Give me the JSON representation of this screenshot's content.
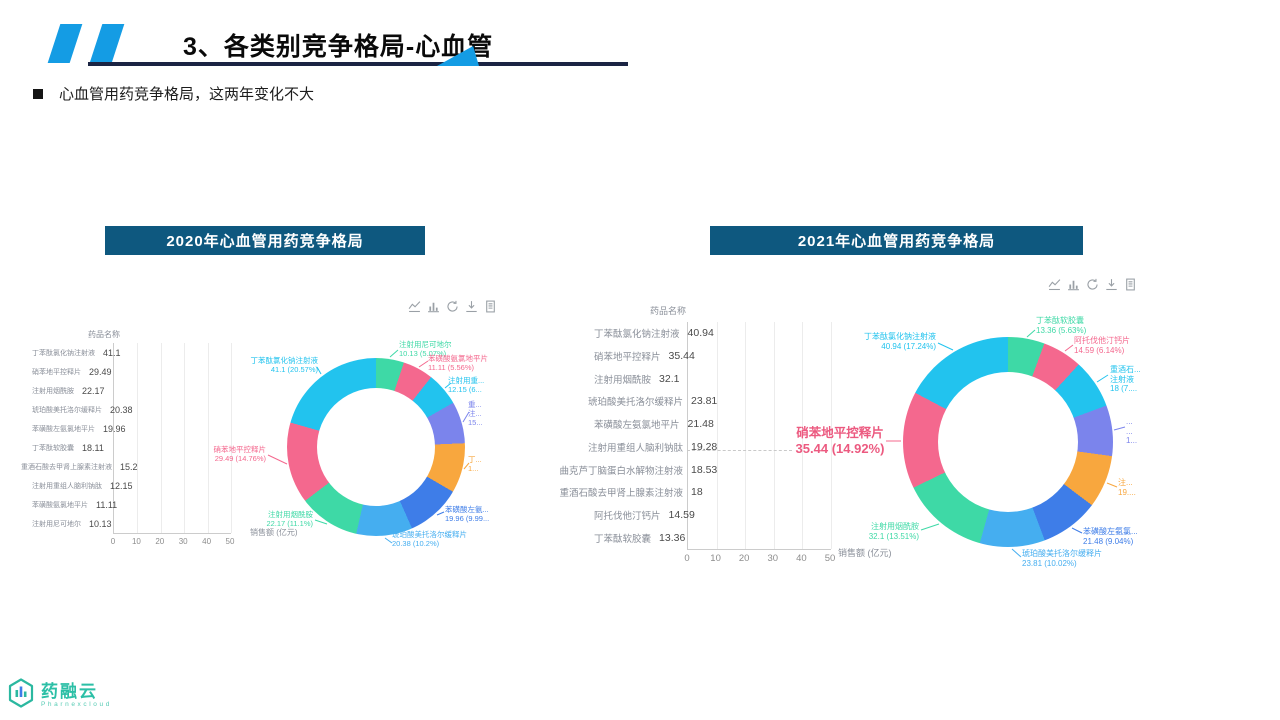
{
  "header": {
    "title": "3、各类别竞争格局-心血管",
    "bullet": "心血管用药竞争格局，这两年变化不大"
  },
  "panels": [
    {
      "banner": "2020年心血管用药竞争格局",
      "axis_y_label": "药品名称",
      "axis_x_label": "销售额 (亿元)"
    },
    {
      "banner": "2021年心血管用药竞争格局",
      "axis_y_label": "药品名称",
      "axis_x_label": "销售额 (亿元)"
    }
  ],
  "toolbar_icons": [
    "line-chart",
    "bar-chart",
    "restore",
    "download",
    "data-view"
  ],
  "highlight": {
    "name": "硝苯地平控释片",
    "value": "35.44 (14.92%)"
  },
  "footer": {
    "brand": "药融云",
    "brand_en": "Pharnexcloud"
  },
  "colors": {
    "cyan": "#22C3EE",
    "pink": "#F4688E",
    "green": "#3ED9A6",
    "lightblue": "#45AEF0",
    "blue": "#3E7DE8",
    "orange": "#F8A73E",
    "purple": "#7B84EC",
    "bar": "#4D9EF6",
    "banner": "#0E587F",
    "accent": "#149CE4",
    "underline": "#1B2443",
    "highlight_pink": "#EC5A80",
    "brand_teal": "#2BBFA6"
  },
  "chart_data": [
    {
      "type": "bar",
      "title": "2020年心血管用药竞争格局",
      "xlabel": "销售额 (亿元)",
      "ylabel": "药品名称",
      "xlim": [
        0,
        50
      ],
      "xticks": [
        0,
        10,
        20,
        30,
        40,
        50
      ],
      "grid": true,
      "legend": "none",
      "categories": [
        "丁苯酞氯化钠注射液",
        "硝苯地平控释片",
        "注射用烟酰胺",
        "琥珀酸美托洛尔缓释片",
        "苯磺酸左氨氯地平片",
        "丁苯酞软胶囊",
        "重酒石酸去甲肾上腺素注射液",
        "注射用重组人脑利钠肽",
        "苯磺酸氨氯地平片",
        "注射用尼可地尔"
      ],
      "values": [
        41.1,
        29.49,
        22.17,
        20.38,
        19.96,
        18.11,
        15.2,
        12.15,
        11.11,
        10.13
      ]
    },
    {
      "type": "pie",
      "title": "2020年心血管用药竞争格局（占比）",
      "slices": [
        {
          "name": "注射用尼可地尔",
          "value": 10.13,
          "pct": 5.07,
          "color": "green"
        },
        {
          "name": "苯磺酸氨氯地平片",
          "value": 11.11,
          "pct": 5.56,
          "color": "pink"
        },
        {
          "name": "注射用重组人脑利钠肽",
          "value": 12.15,
          "pct": 6.08,
          "color": "cyan"
        },
        {
          "name": "重酒石酸去甲肾上腺素注射液",
          "value": 15.2,
          "pct": 7.61,
          "color": "purple"
        },
        {
          "name": "丁苯酞软胶囊",
          "value": 18.11,
          "pct": 9.06,
          "color": "orange"
        },
        {
          "name": "苯磺酸左氨氯地平片",
          "value": 19.96,
          "pct": 9.99,
          "color": "blue"
        },
        {
          "name": "琥珀酸美托洛尔缓释片",
          "value": 20.38,
          "pct": 10.2,
          "color": "lightblue"
        },
        {
          "name": "注射用烟酰胺",
          "value": 22.17,
          "pct": 11.1,
          "color": "green"
        },
        {
          "name": "硝苯地平控释片",
          "value": 29.49,
          "pct": 14.76,
          "color": "pink"
        },
        {
          "name": "丁苯酞氯化钠注射液",
          "value": 41.1,
          "pct": 20.57,
          "color": "cyan"
        }
      ],
      "labels": [
        {
          "lines": [
            "丁苯酞氯化钠注射液",
            "41.1 (20.57%)"
          ],
          "color": "cyan"
        },
        {
          "lines": [
            "注射用尼可地尔",
            "10.13 (5.07%)"
          ],
          "color": "green"
        },
        {
          "lines": [
            "苯磺酸氨氯地平片",
            "11.11 (5.56%)"
          ],
          "color": "pink"
        },
        {
          "lines": [
            "注射用重...",
            "12.15 (6..."
          ],
          "color": "cyan"
        },
        {
          "lines": [
            "重...",
            "注...",
            "15..."
          ],
          "color": "purple"
        },
        {
          "lines": [
            "丁...",
            "1..."
          ],
          "color": "orange"
        },
        {
          "lines": [
            "苯磺酸左氨...",
            "19.96 (9.99..."
          ],
          "color": "blue"
        },
        {
          "lines": [
            "琥珀酸美托洛尔缓释片",
            "20.38 (10.2%)"
          ],
          "color": "lightblue"
        },
        {
          "lines": [
            "注射用烟酰胺",
            "22.17 (11.1%)"
          ],
          "color": "green"
        },
        {
          "lines": [
            "硝苯地平控释片",
            "29.49 (14.76%)"
          ],
          "color": "pink"
        }
      ]
    },
    {
      "type": "bar",
      "title": "2021年心血管用药竞争格局",
      "xlabel": "销售额 (亿元)",
      "ylabel": "药品名称",
      "xlim": [
        0,
        50
      ],
      "xticks": [
        0,
        10,
        20,
        30,
        40,
        50
      ],
      "grid": true,
      "legend": "none",
      "categories": [
        "丁苯酞氯化钠注射液",
        "硝苯地平控释片",
        "注射用烟酰胺",
        "琥珀酸美托洛尔缓释片",
        "苯磺酸左氨氯地平片",
        "注射用重组人脑利钠肽",
        "曲克芦丁脑蛋白水解物注射液",
        "重酒石酸去甲肾上腺素注射液",
        "阿托伐他汀钙片",
        "丁苯酞软胶囊"
      ],
      "values": [
        40.94,
        35.44,
        32.1,
        23.81,
        21.48,
        19.28,
        18.53,
        18,
        14.59,
        13.36
      ]
    },
    {
      "type": "pie",
      "title": "2021年心血管用药竞争格局（占比）",
      "slices": [
        {
          "name": "丁苯酞软胶囊",
          "value": 13.36,
          "pct": 5.63,
          "color": "green"
        },
        {
          "name": "阿托伐他汀钙片",
          "value": 14.59,
          "pct": 6.14,
          "color": "pink"
        },
        {
          "name": "重酒石酸去甲肾上腺素注射液",
          "value": 18,
          "pct": 7.58,
          "color": "cyan"
        },
        {
          "name": "曲克芦丁脑蛋白水解物注射液",
          "value": 18.53,
          "pct": 7.8,
          "color": "purple"
        },
        {
          "name": "注射用重组人脑利钠肽",
          "value": 19.28,
          "pct": 8.12,
          "color": "orange"
        },
        {
          "name": "苯磺酸左氨氯地平片",
          "value": 21.48,
          "pct": 9.04,
          "color": "blue"
        },
        {
          "name": "琥珀酸美托洛尔缓释片",
          "value": 23.81,
          "pct": 10.02,
          "color": "lightblue"
        },
        {
          "name": "注射用烟酰胺",
          "value": 32.1,
          "pct": 13.51,
          "color": "green"
        },
        {
          "name": "硝苯地平控释片",
          "value": 35.44,
          "pct": 14.92,
          "color": "pink"
        },
        {
          "name": "丁苯酞氯化钠注射液",
          "value": 40.94,
          "pct": 17.24,
          "color": "cyan"
        }
      ],
      "labels": [
        {
          "lines": [
            "丁苯酞氯化钠注射液",
            "40.94 (17.24%)"
          ],
          "color": "cyan"
        },
        {
          "lines": [
            "丁苯酞软胶囊",
            "13.36 (5.63%)"
          ],
          "color": "green"
        },
        {
          "lines": [
            "阿托伐他汀钙片",
            "14.59 (6.14%)"
          ],
          "color": "pink"
        },
        {
          "lines": [
            "重酒石...",
            "注射液",
            "18 (7...."
          ],
          "color": "cyan"
        },
        {
          "lines": [
            "...",
            "...",
            "1..."
          ],
          "color": "purple"
        },
        {
          "lines": [
            "注...",
            "19...."
          ],
          "color": "orange"
        },
        {
          "lines": [
            "苯磺酸左氨氯...",
            "21.48 (9.04%)"
          ],
          "color": "blue"
        },
        {
          "lines": [
            "琥珀酸美托洛尔缓释片",
            "23.81 (10.02%)"
          ],
          "color": "lightblue"
        },
        {
          "lines": [
            "注射用烟酰胺",
            "32.1 (13.51%)"
          ],
          "color": "green"
        }
      ]
    }
  ]
}
